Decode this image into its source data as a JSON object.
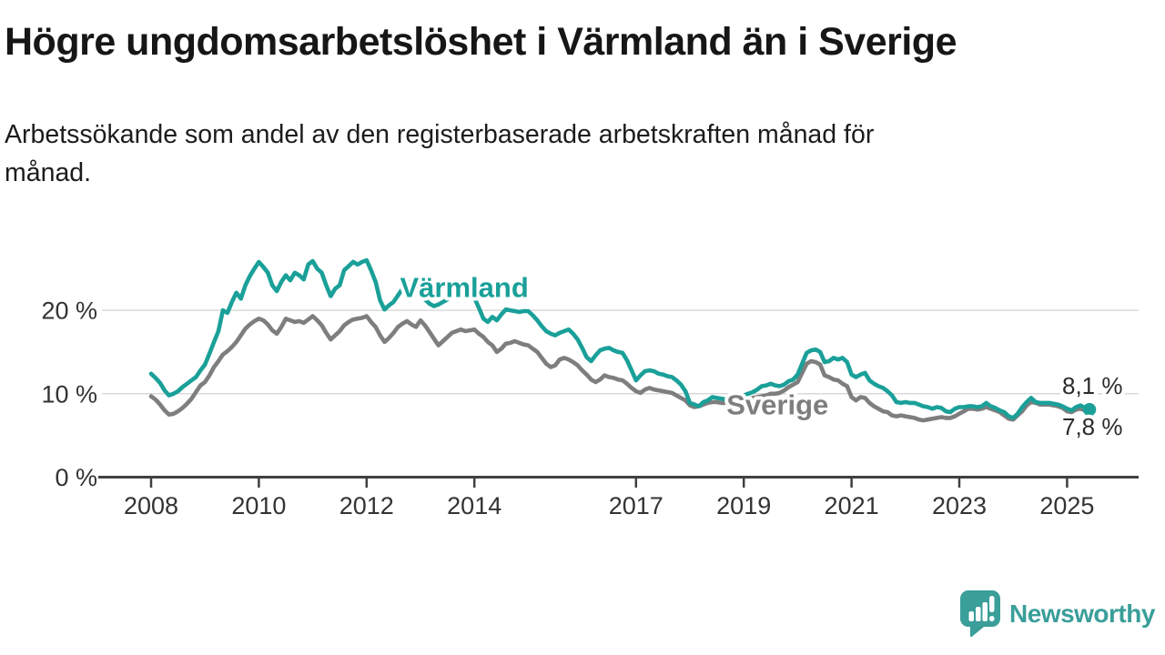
{
  "title": "Högre ungdomsarbetslöshet i Värmland än i Sverige",
  "subtitle": "Arbetssökande som andel av den registerbaserade arbetskraften månad för månad.",
  "branding": {
    "name": "Newsworthy"
  },
  "colors": {
    "varmland": "#1aa099",
    "sverige": "#7e7e7e",
    "grid": "#d9d9d9",
    "axis": "#404040",
    "tick_text": "#333333",
    "end_label_text": "#2b2b2b",
    "logo": "#3a9e99",
    "title_text": "#161616"
  },
  "chart_data": {
    "type": "line",
    "title": "Högre ungdomsarbetslöshet i Värmland än i Sverige",
    "subtitle": "Arbetssökande som andel av den registerbaserade arbetskraften månad för månad.",
    "unit": "%",
    "x_start_year": 2008,
    "x_resolution": "monthly",
    "x_end": "2025-06",
    "ylim": [
      0,
      27.5
    ],
    "grid": "horizontal",
    "y_ticks": [
      {
        "value": 0,
        "label": "0 %"
      },
      {
        "value": 10,
        "label": "10 %"
      },
      {
        "value": 20,
        "label": "20 %"
      }
    ],
    "x_ticks": [
      {
        "year": 2008,
        "label": "2008"
      },
      {
        "year": 2010,
        "label": "2010"
      },
      {
        "year": 2012,
        "label": "2012"
      },
      {
        "year": 2014,
        "label": "2014"
      },
      {
        "year": 2017,
        "label": "2017"
      },
      {
        "year": 2019,
        "label": "2019"
      },
      {
        "year": 2021,
        "label": "2021"
      },
      {
        "year": 2023,
        "label": "2023"
      },
      {
        "year": 2025,
        "label": "2025"
      }
    ],
    "series": [
      {
        "name": "Värmland",
        "color": "#1aa099",
        "end_label": "8,1 %",
        "last_value": 8.1,
        "label_year": 2012.62,
        "label_value": 21.6,
        "values": [
          12.4,
          11.9,
          11.3,
          10.4,
          9.8,
          10.0,
          10.3,
          10.8,
          11.2,
          11.6,
          12.0,
          12.8,
          13.5,
          14.8,
          16.2,
          17.5,
          20.0,
          19.7,
          21.0,
          22.1,
          21.4,
          23.0,
          24.1,
          25.0,
          25.8,
          25.2,
          24.5,
          23.0,
          22.3,
          23.4,
          24.2,
          23.6,
          24.5,
          24.2,
          23.7,
          25.5,
          25.9,
          25.0,
          24.5,
          23.0,
          21.7,
          22.6,
          23.0,
          24.8,
          25.3,
          25.8,
          25.5,
          25.8,
          26.0,
          24.8,
          23.4,
          21.2,
          20.1,
          20.6,
          21.0,
          21.8,
          22.6,
          23.2,
          23.4,
          22.6,
          22.0,
          21.3,
          20.8,
          20.5,
          20.7,
          21.0,
          21.3,
          21.6,
          21.8,
          22.0,
          21.9,
          21.7,
          21.5,
          20.3,
          19.0,
          18.6,
          19.2,
          18.8,
          19.5,
          20.1,
          20.0,
          19.9,
          19.8,
          19.9,
          19.9,
          19.4,
          18.8,
          18.1,
          17.5,
          17.2,
          17.0,
          17.3,
          17.5,
          17.7,
          17.2,
          16.5,
          15.5,
          14.4,
          13.9,
          14.6,
          15.2,
          15.4,
          15.5,
          15.2,
          15.0,
          14.9,
          14.0,
          12.8,
          11.6,
          12.2,
          12.7,
          12.8,
          12.7,
          12.4,
          12.3,
          12.1,
          12.0,
          11.6,
          11.1,
          10.3,
          8.9,
          8.7,
          8.5,
          9.0,
          9.2,
          9.6,
          9.5,
          9.4,
          9.3,
          9.4,
          9.5,
          9.7,
          9.8,
          10.0,
          10.2,
          10.5,
          10.9,
          11.0,
          11.2,
          11.0,
          10.9,
          11.1,
          11.5,
          11.7,
          12.3,
          13.6,
          14.9,
          15.2,
          15.3,
          15.0,
          13.8,
          13.9,
          14.3,
          14.1,
          14.3,
          13.8,
          12.3,
          12.0,
          12.3,
          12.5,
          11.6,
          11.2,
          10.9,
          10.7,
          10.3,
          9.8,
          9.0,
          8.9,
          9.0,
          8.9,
          8.9,
          8.7,
          8.5,
          8.4,
          8.2,
          8.4,
          8.3,
          7.9,
          7.8,
          8.2,
          8.4,
          8.4,
          8.5,
          8.5,
          8.4,
          8.5,
          8.9,
          8.5,
          8.3,
          8.0,
          7.8,
          7.3,
          7.1,
          7.6,
          8.4,
          9.0,
          9.5,
          9.0,
          8.9,
          8.9,
          8.9,
          8.8,
          8.7,
          8.5,
          8.2,
          8.0,
          8.4,
          8.6,
          8.3,
          8.1
        ]
      },
      {
        "name": "Sverige",
        "color": "#7e7e7e",
        "end_label": "7,8 %",
        "last_value": 7.8,
        "label_year": 2018.68,
        "label_value": 7.55,
        "values": [
          9.7,
          9.3,
          8.7,
          8.0,
          7.5,
          7.6,
          7.9,
          8.3,
          8.8,
          9.4,
          10.2,
          11.0,
          11.4,
          12.2,
          13.2,
          13.9,
          14.7,
          15.1,
          15.6,
          16.2,
          17.0,
          17.8,
          18.3,
          18.7,
          19.0,
          18.8,
          18.3,
          17.6,
          17.2,
          18.0,
          19.0,
          18.8,
          18.6,
          18.7,
          18.5,
          18.9,
          19.3,
          18.8,
          18.2,
          17.3,
          16.5,
          17.0,
          17.5,
          18.2,
          18.6,
          18.9,
          19.0,
          19.1,
          19.3,
          18.6,
          18.0,
          17.0,
          16.2,
          16.7,
          17.3,
          18.0,
          18.4,
          18.7,
          18.3,
          18.0,
          18.8,
          18.2,
          17.4,
          16.6,
          15.8,
          16.3,
          16.8,
          17.3,
          17.5,
          17.7,
          17.5,
          17.6,
          17.7,
          17.2,
          16.8,
          16.2,
          15.8,
          15.0,
          15.4,
          16.0,
          16.1,
          16.3,
          16.1,
          15.9,
          15.8,
          15.4,
          15.0,
          14.3,
          13.6,
          13.2,
          13.4,
          14.1,
          14.3,
          14.1,
          13.8,
          13.4,
          12.8,
          12.3,
          11.7,
          11.4,
          11.7,
          12.2,
          12.0,
          11.9,
          11.7,
          11.6,
          11.2,
          10.7,
          10.3,
          10.1,
          10.5,
          10.7,
          10.5,
          10.4,
          10.3,
          10.2,
          10.1,
          9.8,
          9.5,
          9.2,
          8.6,
          8.4,
          8.5,
          8.7,
          8.9,
          9.0,
          9.0,
          8.9,
          8.9,
          9.0,
          9.1,
          9.2,
          9.3,
          9.4,
          9.5,
          9.6,
          9.7,
          9.8,
          10.0,
          10.0,
          10.1,
          10.4,
          10.8,
          11.1,
          11.4,
          12.5,
          13.6,
          13.9,
          13.8,
          13.5,
          12.2,
          12.0,
          11.7,
          11.6,
          11.2,
          10.9,
          9.6,
          9.2,
          9.6,
          9.5,
          8.9,
          8.5,
          8.2,
          7.9,
          7.8,
          7.4,
          7.3,
          7.4,
          7.3,
          7.2,
          7.1,
          6.9,
          6.8,
          6.9,
          7.0,
          7.1,
          7.2,
          7.1,
          7.1,
          7.3,
          7.6,
          7.9,
          8.2,
          8.2,
          8.1,
          8.2,
          8.4,
          8.2,
          8.0,
          7.8,
          7.4,
          7.0,
          6.9,
          7.4,
          7.9,
          8.6,
          9.0,
          8.9,
          8.7,
          8.7,
          8.7,
          8.6,
          8.5,
          8.3,
          7.9,
          7.8,
          8.1,
          8.2,
          8.0,
          7.8
        ]
      }
    ]
  }
}
